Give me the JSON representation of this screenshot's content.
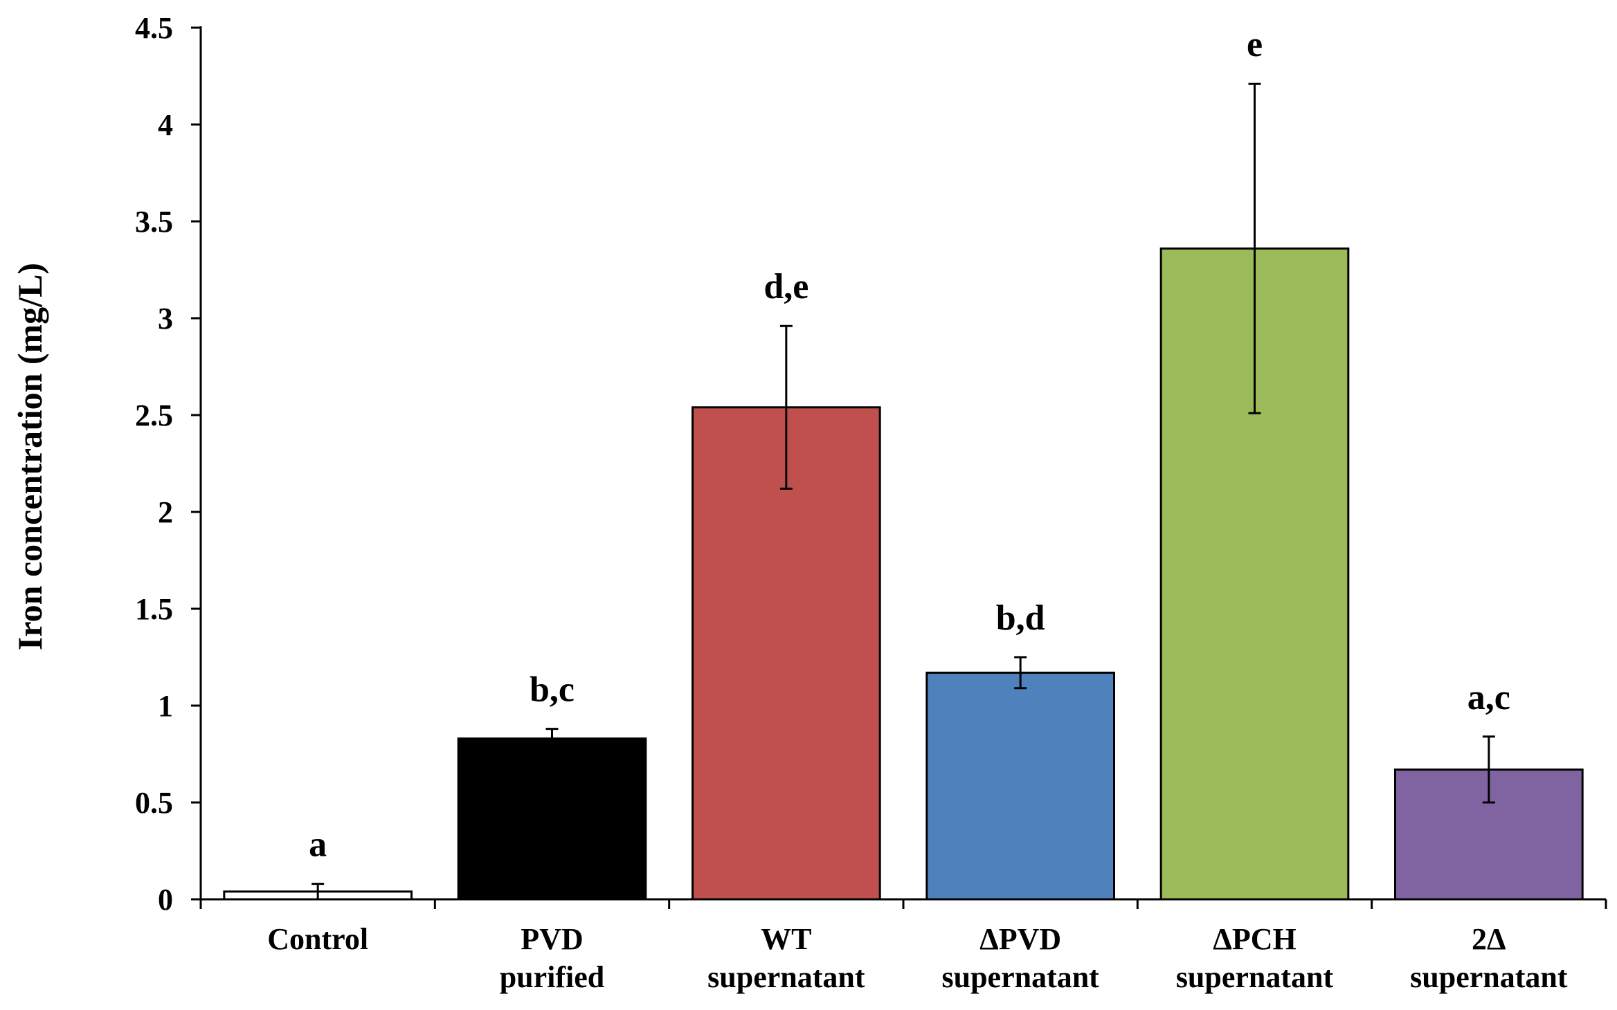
{
  "chart_data": {
    "type": "bar",
    "title": "",
    "xlabel": "",
    "ylabel": "Iron concentration (mg/L)",
    "ylim": [
      0,
      4.5
    ],
    "yticks": [
      0,
      0.5,
      1,
      1.5,
      2,
      2.5,
      3,
      3.5,
      4,
      4.5
    ],
    "ytick_labels": [
      "0",
      "0.5",
      "1",
      "1.5",
      "2",
      "2.5",
      "3",
      "3.5",
      "4",
      "4.5"
    ],
    "grid": false,
    "categories": [
      [
        "Control"
      ],
      [
        "PVD",
        "purified"
      ],
      [
        "WT",
        "supernatant"
      ],
      [
        "ΔPVD",
        "supernatant"
      ],
      [
        "ΔPCH",
        "supernatant"
      ],
      [
        "2Δ",
        "supernatant"
      ]
    ],
    "values": [
      0.04,
      0.83,
      2.54,
      1.17,
      3.36,
      0.67
    ],
    "errors": [
      0.04,
      0.05,
      0.42,
      0.08,
      0.85,
      0.17
    ],
    "significance": [
      "a",
      "b,c",
      "d,e",
      "b,d",
      "e",
      "a,c"
    ],
    "colors": [
      "#ffffff",
      "#000000",
      "#c0504d",
      "#4f81bd",
      "#9bbb59",
      "#8064a2"
    ]
  }
}
